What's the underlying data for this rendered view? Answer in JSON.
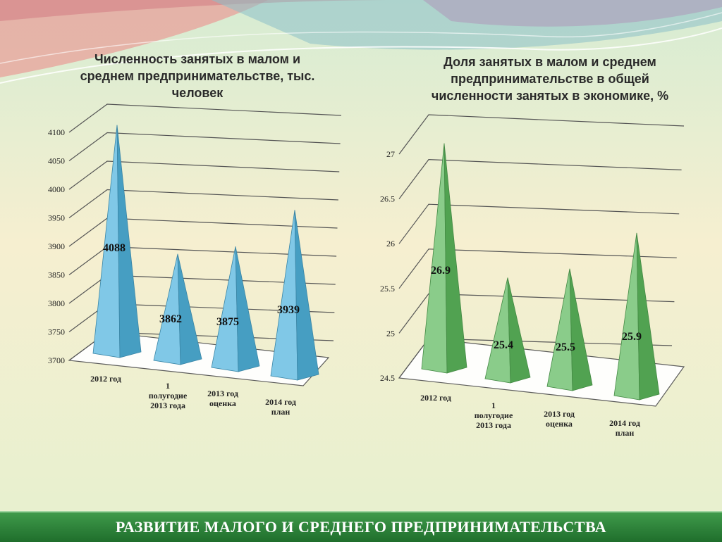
{
  "slide": {
    "footer": "РАЗВИТИЕ МАЛОГО И СРЕДНЕГО ПРЕДПРИНИМАТЕЛЬСТВА"
  },
  "chart_data": [
    {
      "type": "bar",
      "bar_shape": "pyramid",
      "title_lines": [
        "Численность занятых в малом и",
        "среднем предпринимательстве, тыс.",
        "человек"
      ],
      "categories": [
        [
          "2012 год"
        ],
        [
          "1",
          "полугодие",
          "2013 года"
        ],
        [
          "2013 год",
          "оценка"
        ],
        [
          "2014 год",
          "план"
        ]
      ],
      "values": [
        4088,
        3862,
        3875,
        3939
      ],
      "value_labels": [
        "4088",
        "3862",
        "3875",
        "3939"
      ],
      "yticks": [
        "3700",
        "3750",
        "3800",
        "3850",
        "3900",
        "3950",
        "4000",
        "4050",
        "4100"
      ],
      "ylim": [
        3700,
        4100
      ],
      "grid": true,
      "color": "#4fb3dd"
    },
    {
      "type": "bar",
      "bar_shape": "pyramid",
      "title_lines": [
        "Доля занятых в малом и среднем",
        "предпринимательстве в общей",
        "численности занятых в экономике, %"
      ],
      "categories": [
        [
          "2012 год"
        ],
        [
          "1",
          "полугодие",
          "2013 года"
        ],
        [
          "2013 год",
          "оценка"
        ],
        [
          "2014 год",
          "план"
        ]
      ],
      "values": [
        26.9,
        25.4,
        25.5,
        25.9
      ],
      "value_labels": [
        "26.9",
        "25.4",
        "25.5",
        "25.9"
      ],
      "yticks": [
        "24.5",
        "25",
        "25.5",
        "26",
        "26.5",
        "27"
      ],
      "ylim": [
        24.5,
        27
      ],
      "grid": true,
      "color": "#5cb85c"
    }
  ]
}
